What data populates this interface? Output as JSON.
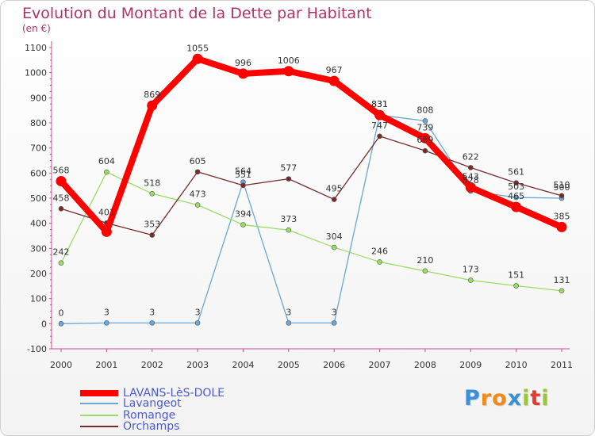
{
  "chart_data": {
    "type": "line",
    "title": "Evolution du Montant de la Dette par Habitant",
    "subtitle": "(en €)",
    "x": [
      "2000",
      "2001",
      "2002",
      "2003",
      "2004",
      "2005",
      "2006",
      "2007",
      "2008",
      "2009",
      "2010",
      "2011"
    ],
    "ylim": [
      -100,
      1100
    ],
    "yticks": [
      -100,
      0,
      100,
      200,
      300,
      400,
      500,
      600,
      700,
      800,
      900,
      1000,
      1100
    ],
    "grid": false,
    "legend_position": "bottom-left",
    "series": [
      {
        "name": "LAVANS-LèS-DOLE",
        "color": "#ff0000",
        "values": [
          568,
          366,
          869,
          1055,
          996,
          1006,
          967,
          831,
          739,
          543,
          465,
          385
        ],
        "labels": [
          "568",
          "",
          "869",
          "1055",
          "996",
          "1006",
          "967",
          "831",
          "739",
          "543",
          "465",
          "385"
        ]
      },
      {
        "name": "Lavangeot",
        "color": "#6aa6d6",
        "values": [
          0,
          3,
          3,
          3,
          564,
          3,
          3,
          831,
          808,
          528,
          503,
          500
        ],
        "labels": [
          "0",
          "3",
          "3",
          "3",
          "564",
          "3",
          "3",
          "831",
          "808",
          "528",
          "503",
          "500"
        ]
      },
      {
        "name": "Romange",
        "color": "#99dd66",
        "values": [
          242,
          604,
          518,
          473,
          394,
          373,
          304,
          246,
          210,
          173,
          151,
          131
        ],
        "labels": [
          "242",
          "604",
          "518",
          "473",
          "394",
          "373",
          "304",
          "246",
          "210",
          "173",
          "151",
          "131"
        ]
      },
      {
        "name": "Orchamps",
        "color": "#7b2a2a",
        "values": [
          458,
          401,
          353,
          605,
          551,
          577,
          495,
          747,
          689,
          622,
          561,
          510
        ],
        "labels": [
          "458",
          "401",
          "353",
          "605",
          "551",
          "577",
          "495",
          "747",
          "689",
          "622",
          "561",
          "510"
        ]
      }
    ]
  },
  "legend": {
    "items": [
      {
        "label": "LAVANS-LèS-DOLE",
        "color": "#ff0000"
      },
      {
        "label": "Lavangeot",
        "color": "#6aa6d6"
      },
      {
        "label": "Romange",
        "color": "#99dd66"
      },
      {
        "label": "Orchamps",
        "color": "#7b2a2a"
      }
    ]
  },
  "logo": {
    "text": "Proxiti",
    "letters": [
      "P",
      "r",
      "o",
      "x",
      "i",
      "t",
      "i"
    ],
    "letter_colors": [
      "#3a8fd6",
      "#f08a1c",
      "#f08a1c",
      "#3a8fd6",
      "#9bc53d",
      "#e53935",
      "#9bc53d"
    ]
  }
}
